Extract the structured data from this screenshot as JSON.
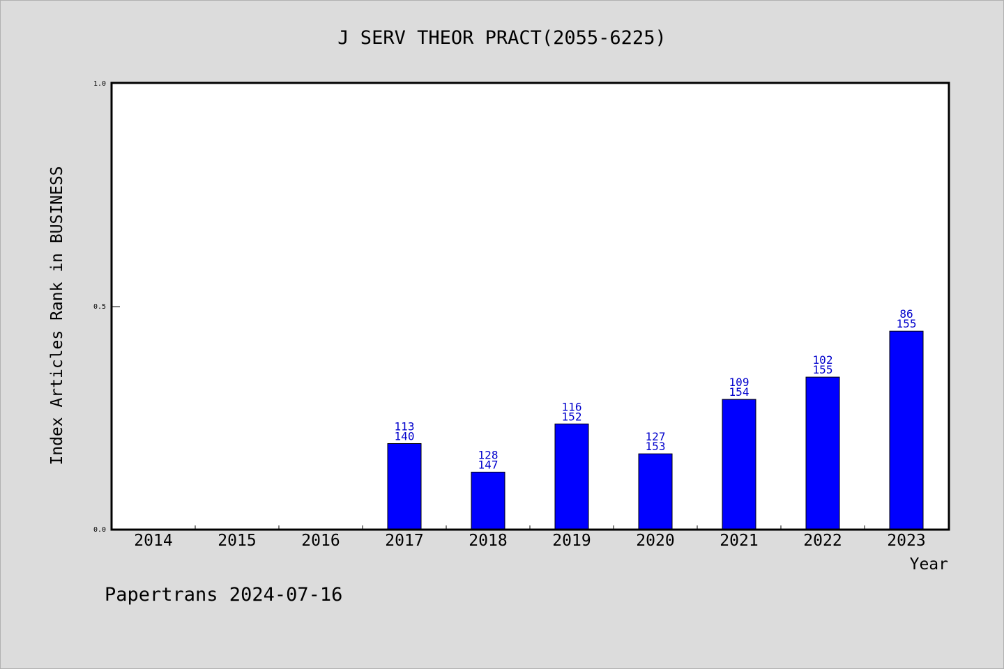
{
  "chart_data": {
    "type": "bar",
    "title": "J SERV THEOR PRACT(2055-6225)",
    "xlabel": "Year",
    "ylabel": "Index Articles Rank in BUSINESS",
    "ylim": [
      0,
      1
    ],
    "yticks": [
      "0.0",
      "0.5",
      "1.0"
    ],
    "categories": [
      "2014",
      "2015",
      "2016",
      "2017",
      "2018",
      "2019",
      "2020",
      "2021",
      "2022",
      "2023"
    ],
    "values": [
      null,
      null,
      null,
      0.193,
      0.129,
      0.237,
      0.17,
      0.292,
      0.342,
      0.445
    ],
    "data_labels": [
      null,
      null,
      null,
      [
        "113",
        "140"
      ],
      [
        "128",
        "147"
      ],
      [
        "116",
        "152"
      ],
      [
        "127",
        "153"
      ],
      [
        "109",
        "154"
      ],
      [
        "102",
        "155"
      ],
      [
        "86",
        "155"
      ]
    ],
    "bar_color": "#0000ff",
    "label_color": "#0000cc",
    "grid": false
  },
  "footer": "Papertrans 2024-07-16"
}
